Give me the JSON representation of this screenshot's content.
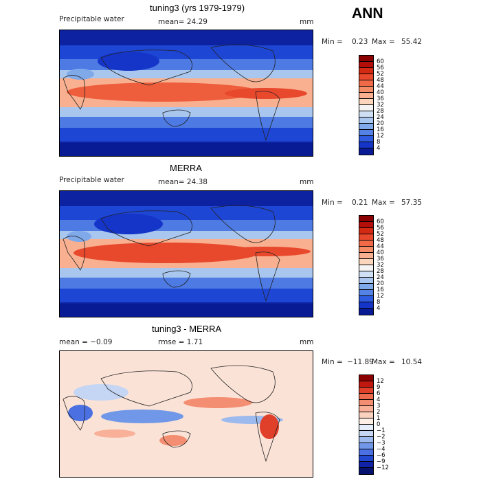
{
  "season": "ANN",
  "panels": [
    {
      "title": "tuning3 (yrs 1979-1979)",
      "left_label": "Precipitable water",
      "center_label": "mean=  24.29",
      "units": "mm",
      "min_label": "Min =",
      "min_value": "0.23",
      "max_label": "Max =",
      "max_value": "55.42",
      "scale": "absolute",
      "colorbar": {
        "labels": [
          "60",
          "56",
          "52",
          "48",
          "44",
          "40",
          "36",
          "32",
          "28",
          "24",
          "20",
          "16",
          "12",
          "8",
          "4"
        ],
        "colors": [
          "#8b0000",
          "#b40e0a",
          "#d42a14",
          "#e8482c",
          "#f16a48",
          "#f58c68",
          "#f8b090",
          "#fbd6bc",
          "#f4f4f4",
          "#cfdff4",
          "#a9c7ee",
          "#80a9ea",
          "#5582e6",
          "#2e5bdf",
          "#1535c8",
          "#081b94"
        ]
      }
    },
    {
      "title": "MERRA",
      "left_label": "Precipitable water",
      "center_label": "mean=  24.38",
      "units": "mm",
      "min_label": "Min =",
      "min_value": "0.21",
      "max_label": "Max =",
      "max_value": "57.35",
      "scale": "absolute",
      "colorbar": {
        "labels": [
          "60",
          "56",
          "52",
          "48",
          "44",
          "40",
          "36",
          "32",
          "28",
          "24",
          "20",
          "16",
          "12",
          "8",
          "4"
        ],
        "colors": [
          "#8b0000",
          "#b40e0a",
          "#d42a14",
          "#e8482c",
          "#f16a48",
          "#f58c68",
          "#f8b090",
          "#fbd6bc",
          "#f4f4f4",
          "#cfdff4",
          "#a9c7ee",
          "#80a9ea",
          "#5582e6",
          "#2e5bdf",
          "#1535c8",
          "#081b94"
        ]
      }
    },
    {
      "title": "tuning3 - MERRA",
      "left_label": "mean =  −0.09",
      "center_label": "rmse =   1.71",
      "units": "mm",
      "min_label": "Min =",
      "min_value": "−11.89",
      "max_label": "Max =",
      "max_value": "10.54",
      "scale": "difference",
      "colorbar": {
        "labels": [
          "12",
          "9",
          "6",
          "4",
          "3",
          "2",
          "1",
          "0",
          "−1",
          "−2",
          "−3",
          "−4",
          "−6",
          "−9",
          "−12"
        ],
        "colors": [
          "#8b0000",
          "#c0180e",
          "#e0402a",
          "#ee6a4c",
          "#f48e72",
          "#f8b098",
          "#fbd2c0",
          "#fdeee6",
          "#e6eefb",
          "#c4d6f4",
          "#9cbaee",
          "#7198e8",
          "#4a70e2",
          "#2348d0",
          "#0f22a8",
          "#061270"
        ]
      }
    }
  ]
}
